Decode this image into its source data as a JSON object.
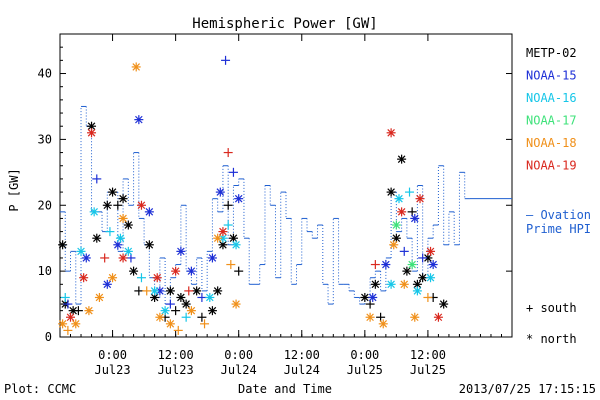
{
  "chart_data": {
    "type": "scatter",
    "title": "Hemispheric Power [GW]",
    "xlabel": "Date and Time",
    "ylabel": "P [GW]",
    "xlim": [
      "2013-07-22 14:00",
      "2013-07-26 04:00"
    ],
    "ylim": [
      0,
      46
    ],
    "y_ticks": [
      0,
      10,
      20,
      30,
      40
    ],
    "x_ticks": [
      {
        "t": "2013-07-23 00:00",
        "time": "0:00",
        "date": "Jul23"
      },
      {
        "t": "2013-07-23 12:00",
        "time": "12:00",
        "date": "Jul23"
      },
      {
        "t": "2013-07-24 00:00",
        "time": "0:00",
        "date": "Jul24"
      },
      {
        "t": "2013-07-24 12:00",
        "time": "12:00",
        "date": "Jul24"
      },
      {
        "t": "2013-07-25 00:00",
        "time": "0:00",
        "date": "Jul25"
      },
      {
        "t": "2013-07-25 12:00",
        "time": "12:00",
        "date": "Jul25"
      }
    ],
    "grid": false,
    "legend_position": "right",
    "marker_legend": {
      "south": "+ south",
      "north": "* north"
    },
    "ovation": {
      "label_line1": "— Ovation",
      "label_line2": "Prime HPI",
      "color": "#1f5fd0",
      "steps": [
        [
          "2013-07-22 14:00",
          19
        ],
        [
          "2013-07-22 15:00",
          10
        ],
        [
          "2013-07-22 16:00",
          13
        ],
        [
          "2013-07-22 17:00",
          5
        ],
        [
          "2013-07-22 18:00",
          35
        ],
        [
          "2013-07-22 19:00",
          32
        ],
        [
          "2013-07-22 20:00",
          19
        ],
        [
          "2013-07-22 22:00",
          16
        ],
        [
          "2013-07-22 23:00",
          22
        ],
        [
          "2013-07-23 01:00",
          13
        ],
        [
          "2013-07-23 02:00",
          24
        ],
        [
          "2013-07-23 03:00",
          20
        ],
        [
          "2013-07-23 04:00",
          28
        ],
        [
          "2013-07-23 05:00",
          18
        ],
        [
          "2013-07-23 06:00",
          14
        ],
        [
          "2013-07-23 07:00",
          9
        ],
        [
          "2013-07-23 08:00",
          6
        ],
        [
          "2013-07-23 09:00",
          12
        ],
        [
          "2013-07-23 10:00",
          5
        ],
        [
          "2013-07-23 11:00",
          9
        ],
        [
          "2013-07-23 12:00",
          11
        ],
        [
          "2013-07-23 13:00",
          20
        ],
        [
          "2013-07-23 14:00",
          10
        ],
        [
          "2013-07-23 15:00",
          8
        ],
        [
          "2013-07-23 16:00",
          12
        ],
        [
          "2013-07-23 17:00",
          7
        ],
        [
          "2013-07-23 18:00",
          13
        ],
        [
          "2013-07-23 19:00",
          21
        ],
        [
          "2013-07-23 20:00",
          19
        ],
        [
          "2013-07-23 21:00",
          26
        ],
        [
          "2013-07-23 22:00",
          14
        ],
        [
          "2013-07-23 23:00",
          23
        ],
        [
          "2013-07-24 00:00",
          24
        ],
        [
          "2013-07-24 01:00",
          15
        ],
        [
          "2013-07-24 02:00",
          8
        ],
        [
          "2013-07-24 03:00",
          8
        ],
        [
          "2013-07-24 04:00",
          11
        ],
        [
          "2013-07-24 05:00",
          23
        ],
        [
          "2013-07-24 06:00",
          20
        ],
        [
          "2013-07-24 07:00",
          9
        ],
        [
          "2013-07-24 08:00",
          22
        ],
        [
          "2013-07-24 09:00",
          18
        ],
        [
          "2013-07-24 10:00",
          8
        ],
        [
          "2013-07-24 11:00",
          11
        ],
        [
          "2013-07-24 12:00",
          18
        ],
        [
          "2013-07-24 13:00",
          16
        ],
        [
          "2013-07-24 14:00",
          15
        ],
        [
          "2013-07-24 15:00",
          17
        ],
        [
          "2013-07-24 16:00",
          8
        ],
        [
          "2013-07-24 17:00",
          5
        ],
        [
          "2013-07-24 18:00",
          18
        ],
        [
          "2013-07-24 19:00",
          8
        ],
        [
          "2013-07-24 20:00",
          8
        ],
        [
          "2013-07-24 21:00",
          7
        ],
        [
          "2013-07-24 22:00",
          6
        ],
        [
          "2013-07-24 23:00",
          5
        ],
        [
          "2013-07-25 00:00",
          6
        ],
        [
          "2013-07-25 01:00",
          9
        ],
        [
          "2013-07-25 02:00",
          10
        ],
        [
          "2013-07-25 03:00",
          7
        ],
        [
          "2013-07-25 04:00",
          12
        ],
        [
          "2013-07-25 05:00",
          22
        ],
        [
          "2013-07-25 06:00",
          16
        ],
        [
          "2013-07-25 07:00",
          18
        ],
        [
          "2013-07-25 08:00",
          15
        ],
        [
          "2013-07-25 09:00",
          10
        ],
        [
          "2013-07-25 10:00",
          23
        ],
        [
          "2013-07-25 11:00",
          9
        ],
        [
          "2013-07-25 12:00",
          15
        ],
        [
          "2013-07-25 13:00",
          17
        ],
        [
          "2013-07-25 14:00",
          26
        ],
        [
          "2013-07-25 15:00",
          14
        ],
        [
          "2013-07-25 16:00",
          19
        ],
        [
          "2013-07-25 17:00",
          14
        ],
        [
          "2013-07-25 18:00",
          25
        ],
        [
          "2013-07-25 19:00",
          21
        ],
        [
          "2013-07-25 20:00",
          21
        ]
      ]
    },
    "series": [
      {
        "name": "METP-02",
        "color": "#000000",
        "points": [
          [
            "2013-07-22 14:30",
            14,
            "north"
          ],
          [
            "2013-07-22 15:00",
            5,
            "north"
          ],
          [
            "2013-07-22 16:30",
            4,
            "north"
          ],
          [
            "2013-07-22 17:30",
            4,
            "south"
          ],
          [
            "2013-07-22 20:00",
            32,
            "north"
          ],
          [
            "2013-07-22 21:00",
            15,
            "north"
          ],
          [
            "2013-07-22 23:00",
            20,
            "north"
          ],
          [
            "2013-07-23 00:00",
            22,
            "north"
          ],
          [
            "2013-07-23 01:00",
            20,
            "south"
          ],
          [
            "2013-07-23 02:00",
            21,
            "north"
          ],
          [
            "2013-07-23 03:00",
            17,
            "north"
          ],
          [
            "2013-07-23 04:00",
            10,
            "north"
          ],
          [
            "2013-07-23 05:00",
            7,
            "south"
          ],
          [
            "2013-07-23 07:00",
            14,
            "north"
          ],
          [
            "2013-07-23 08:00",
            6,
            "north"
          ],
          [
            "2013-07-23 10:00",
            3,
            "south"
          ],
          [
            "2013-07-23 11:00",
            7,
            "north"
          ],
          [
            "2013-07-23 12:00",
            4,
            "south"
          ],
          [
            "2013-07-23 13:00",
            6,
            "north"
          ],
          [
            "2013-07-23 14:00",
            5,
            "north"
          ],
          [
            "2013-07-23 16:00",
            7,
            "north"
          ],
          [
            "2013-07-23 17:00",
            3,
            "south"
          ],
          [
            "2013-07-23 19:00",
            4,
            "north"
          ],
          [
            "2013-07-23 20:00",
            7,
            "north"
          ],
          [
            "2013-07-23 21:00",
            14,
            "north"
          ],
          [
            "2013-07-23 22:00",
            20,
            "south"
          ],
          [
            "2013-07-23 23:00",
            15,
            "north"
          ],
          [
            "2013-07-24 00:00",
            10,
            "south"
          ],
          [
            "2013-07-25 00:00",
            6,
            "north"
          ],
          [
            "2013-07-25 01:00",
            5,
            "south"
          ],
          [
            "2013-07-25 02:00",
            8,
            "north"
          ],
          [
            "2013-07-25 03:00",
            3,
            "south"
          ],
          [
            "2013-07-25 05:00",
            22,
            "north"
          ],
          [
            "2013-07-25 06:00",
            15,
            "north"
          ],
          [
            "2013-07-25 07:00",
            27,
            "north"
          ],
          [
            "2013-07-25 08:00",
            10,
            "north"
          ],
          [
            "2013-07-25 09:00",
            19,
            "south"
          ],
          [
            "2013-07-25 10:00",
            8,
            "north"
          ],
          [
            "2013-07-25 11:00",
            9,
            "north"
          ],
          [
            "2013-07-25 12:00",
            12,
            "north"
          ],
          [
            "2013-07-25 13:00",
            6,
            "south"
          ],
          [
            "2013-07-25 15:00",
            5,
            "north"
          ]
        ]
      },
      {
        "name": "NOAA-15",
        "color": "#1d2fd6",
        "points": [
          [
            "2013-07-22 15:30",
            5,
            "south"
          ],
          [
            "2013-07-22 19:00",
            12,
            "north"
          ],
          [
            "2013-07-22 21:00",
            24,
            "south"
          ],
          [
            "2013-07-22 23:00",
            8,
            "north"
          ],
          [
            "2013-07-23 01:00",
            14,
            "north"
          ],
          [
            "2013-07-23 03:30",
            12,
            "south"
          ],
          [
            "2013-07-23 05:00",
            33,
            "north"
          ],
          [
            "2013-07-23 07:00",
            19,
            "north"
          ],
          [
            "2013-07-23 09:00",
            7,
            "north"
          ],
          [
            "2013-07-23 11:00",
            5,
            "south"
          ],
          [
            "2013-07-23 13:00",
            13,
            "north"
          ],
          [
            "2013-07-23 15:00",
            10,
            "north"
          ],
          [
            "2013-07-23 17:00",
            6,
            "south"
          ],
          [
            "2013-07-23 19:00",
            12,
            "north"
          ],
          [
            "2013-07-23 20:30",
            22,
            "north"
          ],
          [
            "2013-07-23 21:30",
            42,
            "south"
          ],
          [
            "2013-07-23 23:00",
            25,
            "south"
          ],
          [
            "2013-07-24 00:00",
            21,
            "north"
          ],
          [
            "2013-07-25 01:30",
            6,
            "north"
          ],
          [
            "2013-07-25 04:00",
            11,
            "north"
          ],
          [
            "2013-07-25 07:30",
            13,
            "south"
          ],
          [
            "2013-07-25 09:30",
            18,
            "north"
          ],
          [
            "2013-07-25 11:00",
            12,
            "south"
          ],
          [
            "2013-07-25 13:00",
            11,
            "north"
          ]
        ]
      },
      {
        "name": "NOAA-16",
        "color": "#16c6e8",
        "points": [
          [
            "2013-07-22 15:00",
            6,
            "south"
          ],
          [
            "2013-07-22 18:00",
            13,
            "north"
          ],
          [
            "2013-07-22 20:30",
            19,
            "north"
          ],
          [
            "2013-07-22 23:30",
            16,
            "south"
          ],
          [
            "2013-07-23 01:30",
            15,
            "north"
          ],
          [
            "2013-07-23 03:00",
            13,
            "north"
          ],
          [
            "2013-07-23 05:30",
            9,
            "south"
          ],
          [
            "2013-07-23 08:00",
            7,
            "north"
          ],
          [
            "2013-07-23 10:00",
            4,
            "north"
          ],
          [
            "2013-07-23 14:00",
            3,
            "south"
          ],
          [
            "2013-07-23 18:30",
            6,
            "north"
          ],
          [
            "2013-07-23 21:00",
            15,
            "north"
          ],
          [
            "2013-07-23 22:00",
            17,
            "south"
          ],
          [
            "2013-07-23 23:30",
            14,
            "north"
          ],
          [
            "2013-07-25 05:00",
            8,
            "north"
          ],
          [
            "2013-07-25 06:30",
            21,
            "north"
          ],
          [
            "2013-07-25 08:30",
            22,
            "south"
          ],
          [
            "2013-07-25 10:00",
            7,
            "north"
          ],
          [
            "2013-07-25 12:30",
            9,
            "north"
          ]
        ]
      },
      {
        "name": "NOAA-17",
        "color": "#3ee27a",
        "points": [
          [
            "2013-07-25 06:00",
            17,
            "north"
          ],
          [
            "2013-07-25 09:00",
            11,
            "north"
          ]
        ]
      },
      {
        "name": "NOAA-18",
        "color": "#f0901a",
        "points": [
          [
            "2013-07-22 14:30",
            2,
            "north"
          ],
          [
            "2013-07-22 15:30",
            1,
            "south"
          ],
          [
            "2013-07-22 17:00",
            2,
            "north"
          ],
          [
            "2013-07-22 19:30",
            4,
            "north"
          ],
          [
            "2013-07-22 21:30",
            6,
            "north"
          ],
          [
            "2013-07-23 00:00",
            9,
            "north"
          ],
          [
            "2013-07-23 02:00",
            18,
            "north"
          ],
          [
            "2013-07-23 04:30",
            41,
            "north"
          ],
          [
            "2013-07-23 06:30",
            7,
            "south"
          ],
          [
            "2013-07-23 09:00",
            3,
            "north"
          ],
          [
            "2013-07-23 11:00",
            2,
            "north"
          ],
          [
            "2013-07-23 12:30",
            1,
            "south"
          ],
          [
            "2013-07-23 15:00",
            4,
            "north"
          ],
          [
            "2013-07-23 17:30",
            2,
            "south"
          ],
          [
            "2013-07-23 20:00",
            15,
            "north"
          ],
          [
            "2013-07-23 22:30",
            11,
            "south"
          ],
          [
            "2013-07-23 23:30",
            5,
            "north"
          ],
          [
            "2013-07-25 01:00",
            3,
            "north"
          ],
          [
            "2013-07-25 03:30",
            2,
            "north"
          ],
          [
            "2013-07-25 05:30",
            14,
            "north"
          ],
          [
            "2013-07-25 07:30",
            8,
            "north"
          ],
          [
            "2013-07-25 09:30",
            3,
            "north"
          ],
          [
            "2013-07-25 12:00",
            6,
            "south"
          ]
        ]
      },
      {
        "name": "NOAA-19",
        "color": "#d9281e",
        "points": [
          [
            "2013-07-22 16:00",
            3,
            "north"
          ],
          [
            "2013-07-22 18:30",
            9,
            "north"
          ],
          [
            "2013-07-22 20:00",
            31,
            "north"
          ],
          [
            "2013-07-22 22:30",
            12,
            "south"
          ],
          [
            "2013-07-23 02:00",
            12,
            "north"
          ],
          [
            "2013-07-23 05:30",
            20,
            "north"
          ],
          [
            "2013-07-23 08:30",
            9,
            "north"
          ],
          [
            "2013-07-23 12:00",
            10,
            "north"
          ],
          [
            "2013-07-23 14:30",
            7,
            "south"
          ],
          [
            "2013-07-23 21:00",
            16,
            "north"
          ],
          [
            "2013-07-23 22:00",
            28,
            "south"
          ],
          [
            "2013-07-25 02:00",
            11,
            "south"
          ],
          [
            "2013-07-25 05:00",
            31,
            "north"
          ],
          [
            "2013-07-25 07:00",
            19,
            "north"
          ],
          [
            "2013-07-25 10:30",
            21,
            "north"
          ],
          [
            "2013-07-25 12:30",
            13,
            "north"
          ],
          [
            "2013-07-25 14:00",
            3,
            "north"
          ]
        ]
      }
    ]
  },
  "footer": {
    "plot_credit": "Plot: CCMC",
    "timestamp": "2013/07/25 17:15:15"
  }
}
